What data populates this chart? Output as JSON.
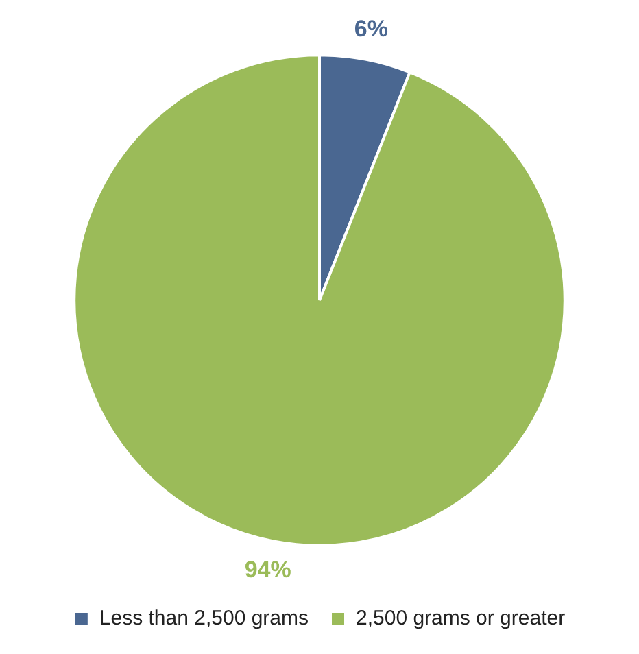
{
  "chart_data": {
    "type": "pie",
    "categories": [
      "Less than 2,500 grams",
      "2,500 grams or greater"
    ],
    "values": [
      6,
      94
    ],
    "colors": [
      "#4a6791",
      "#9bbb59"
    ],
    "value_labels": [
      "6%",
      "94%"
    ],
    "legend": "bottom"
  }
}
